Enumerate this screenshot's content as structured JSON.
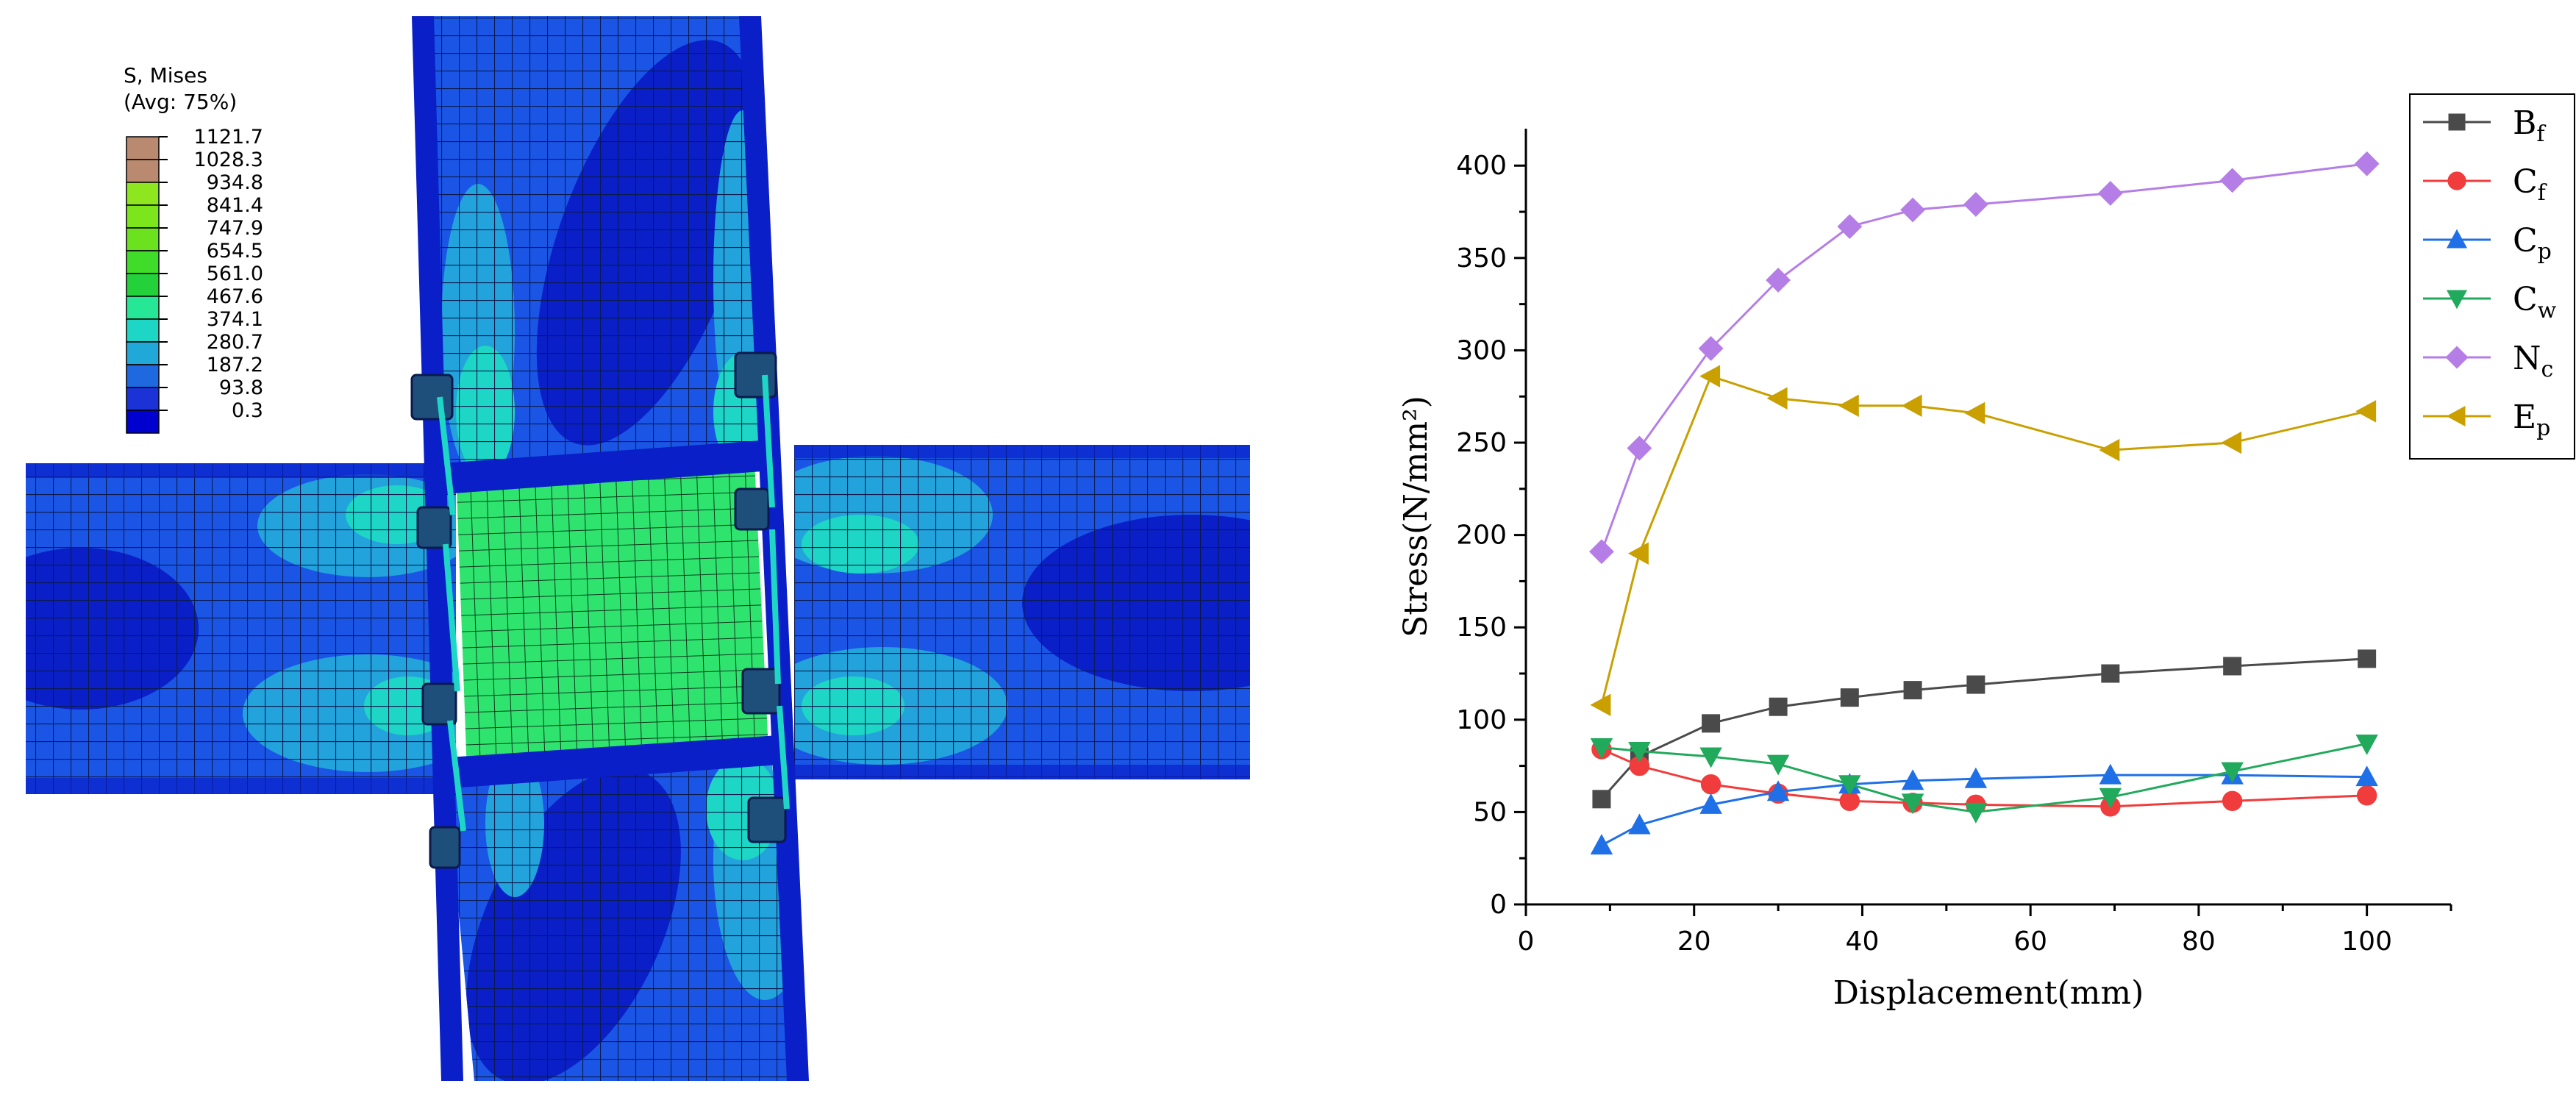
{
  "fe_model": {
    "legend_title": "S, Mises",
    "legend_subtitle": "(Avg: 75%)",
    "contour_levels": [
      {
        "value": "1121.7",
        "color": "#b98a6f"
      },
      {
        "value": "1028.3",
        "color": "#b98a6f"
      },
      {
        "value": "934.8",
        "color": "#8ee61e"
      },
      {
        "value": "841.4",
        "color": "#7de51c"
      },
      {
        "value": "747.9",
        "color": "#6ce21e"
      },
      {
        "value": "654.5",
        "color": "#3fdc29"
      },
      {
        "value": "561.0",
        "color": "#23d23a"
      },
      {
        "value": "467.6",
        "color": "#25e795"
      },
      {
        "value": "374.1",
        "color": "#1ed6c5"
      },
      {
        "value": "280.7",
        "color": "#1fa8d8"
      },
      {
        "value": "187.2",
        "color": "#1e68e0"
      },
      {
        "value": "93.8",
        "color": "#1b33d6"
      },
      {
        "value": "0.3",
        "color": "#0000cf"
      }
    ],
    "colors": {
      "base_blue": "#1a55e6",
      "dark_blue": "#0a1fc7",
      "light_blue": "#22a3dc",
      "cyan": "#1ed6c5",
      "panel_zone": "#2ee36e",
      "mesh_line": "#0b1a4d"
    }
  },
  "chart_data": {
    "type": "line",
    "xlabel": "Displacement(mm)",
    "ylabel": "Stress(N/mm²)",
    "xlim": [
      0,
      110
    ],
    "ylim": [
      0,
      420
    ],
    "xticks": [
      0,
      20,
      40,
      60,
      80,
      100
    ],
    "yticks": [
      0,
      50,
      100,
      150,
      200,
      250,
      300,
      350,
      400
    ],
    "legend_position": "top-right",
    "series": [
      {
        "name": "B",
        "sub": "f",
        "color": "#4a4a4a",
        "marker": "square",
        "x": [
          9,
          13.5,
          22,
          30,
          38.5,
          46,
          53.5,
          69.5,
          84,
          100
        ],
        "y": [
          57,
          80,
          98,
          107,
          112,
          116,
          119,
          125,
          129,
          133
        ]
      },
      {
        "name": "C",
        "sub": "f",
        "color": "#f03c3c",
        "marker": "circle",
        "x": [
          9,
          13.5,
          22,
          30,
          38.5,
          46,
          53.5,
          69.5,
          84,
          100
        ],
        "y": [
          84,
          75,
          65,
          60,
          56,
          55,
          54,
          53,
          56,
          59
        ]
      },
      {
        "name": "C",
        "sub": "p",
        "color": "#1f6fe6",
        "marker": "triangle-up",
        "x": [
          9,
          13.5,
          22,
          30,
          38.5,
          46,
          53.5,
          69.5,
          84,
          100
        ],
        "y": [
          32,
          43,
          54,
          61,
          65,
          67,
          68,
          70,
          70,
          69
        ]
      },
      {
        "name": "C",
        "sub": "w",
        "color": "#21a95c",
        "marker": "triangle-down",
        "x": [
          9,
          13.5,
          22,
          30,
          38.5,
          46,
          53.5,
          69.5,
          84,
          100
        ],
        "y": [
          85,
          83,
          80,
          76,
          65,
          55,
          50,
          58,
          72,
          87
        ]
      },
      {
        "name": "N",
        "sub": "c",
        "color": "#b57ee6",
        "marker": "diamond",
        "x": [
          9,
          13.5,
          22,
          30,
          38.5,
          46,
          53.5,
          69.5,
          84,
          100
        ],
        "y": [
          191,
          247,
          301,
          338,
          367,
          376,
          379,
          385,
          392,
          401
        ]
      },
      {
        "name": "E",
        "sub": "p",
        "color": "#c9a000",
        "marker": "triangle-left",
        "x": [
          9,
          13.5,
          22,
          30,
          38.5,
          46,
          53.5,
          69.5,
          84,
          100
        ],
        "y": [
          108,
          190,
          286,
          274,
          270,
          270,
          266,
          246,
          250,
          267
        ]
      }
    ]
  }
}
